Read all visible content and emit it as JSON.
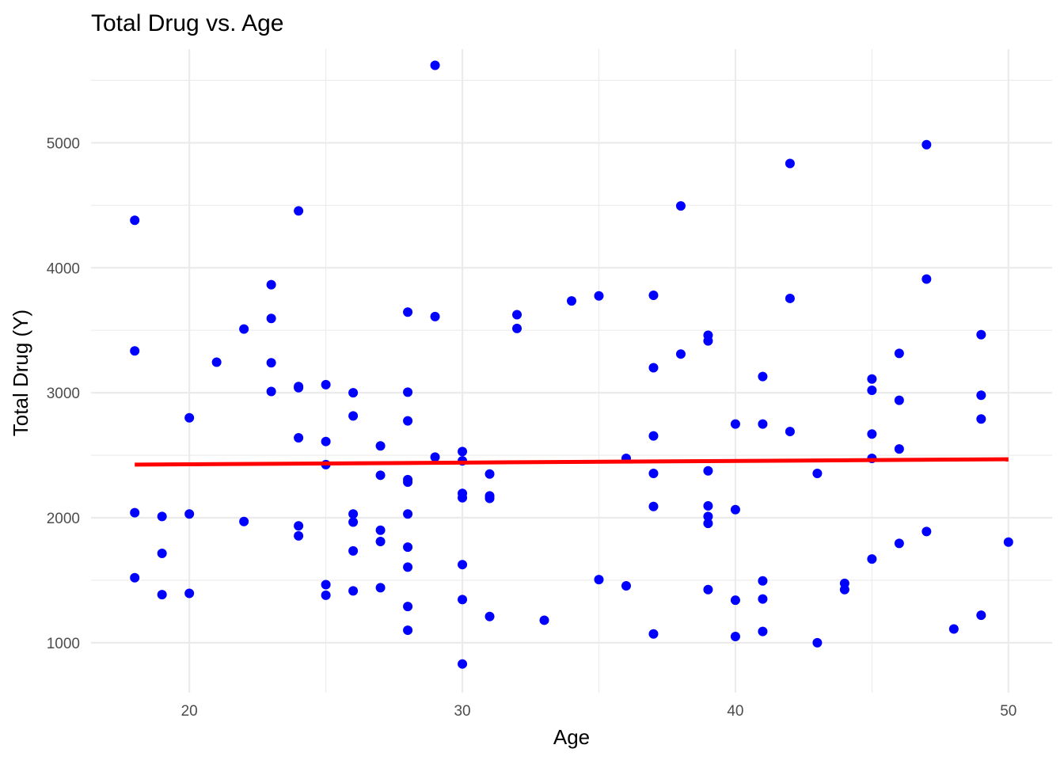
{
  "chart_data": {
    "type": "scatter",
    "title": "Total Drug vs. Age",
    "xlabel": "Age",
    "ylabel": "Total Drug (Y)",
    "xlim": [
      16.4,
      51.6
    ],
    "ylim": [
      600,
      5750
    ],
    "x_ticks": [
      20,
      30,
      40,
      50
    ],
    "y_ticks": [
      1000,
      2000,
      3000,
      4000,
      5000
    ],
    "grid": true,
    "point_color": "#0000ff",
    "line_color": "#ff0000",
    "trend_line": {
      "x": [
        18,
        50
      ],
      "y": [
        2425,
        2468
      ]
    },
    "points": [
      [
        18,
        4380
      ],
      [
        18,
        3335
      ],
      [
        18,
        2040
      ],
      [
        18,
        1520
      ],
      [
        19,
        2010
      ],
      [
        19,
        1715
      ],
      [
        19,
        1385
      ],
      [
        20,
        2800
      ],
      [
        20,
        2030
      ],
      [
        20,
        1395
      ],
      [
        21,
        3245
      ],
      [
        22,
        3510
      ],
      [
        22,
        1970
      ],
      [
        23,
        3865
      ],
      [
        23,
        3595
      ],
      [
        23,
        3240
      ],
      [
        23,
        3010
      ],
      [
        24,
        4455
      ],
      [
        24,
        3050
      ],
      [
        24,
        3040
      ],
      [
        24,
        2640
      ],
      [
        24,
        1935
      ],
      [
        24,
        1855
      ],
      [
        25,
        3065
      ],
      [
        25,
        2610
      ],
      [
        25,
        2425
      ],
      [
        25,
        1465
      ],
      [
        25,
        1380
      ],
      [
        26,
        3000
      ],
      [
        26,
        2815
      ],
      [
        26,
        2030
      ],
      [
        26,
        1965
      ],
      [
        26,
        1735
      ],
      [
        26,
        1415
      ],
      [
        27,
        2575
      ],
      [
        27,
        2340
      ],
      [
        27,
        1900
      ],
      [
        27,
        1810
      ],
      [
        27,
        1440
      ],
      [
        28,
        3645
      ],
      [
        28,
        3005
      ],
      [
        28,
        2775
      ],
      [
        28,
        2305
      ],
      [
        28,
        2285
      ],
      [
        28,
        2030
      ],
      [
        28,
        1765
      ],
      [
        28,
        1605
      ],
      [
        28,
        1290
      ],
      [
        28,
        1100
      ],
      [
        29,
        5620
      ],
      [
        29,
        3610
      ],
      [
        29,
        2485
      ],
      [
        30,
        2530
      ],
      [
        30,
        2455
      ],
      [
        30,
        2195
      ],
      [
        30,
        2160
      ],
      [
        30,
        1625
      ],
      [
        30,
        1345
      ],
      [
        30,
        830
      ],
      [
        31,
        2350
      ],
      [
        31,
        2175
      ],
      [
        31,
        2155
      ],
      [
        31,
        1210
      ],
      [
        32,
        3625
      ],
      [
        32,
        3515
      ],
      [
        33,
        1180
      ],
      [
        34,
        3735
      ],
      [
        35,
        3775
      ],
      [
        35,
        1505
      ],
      [
        36,
        2475
      ],
      [
        36,
        1455
      ],
      [
        37,
        3780
      ],
      [
        37,
        3200
      ],
      [
        37,
        2655
      ],
      [
        37,
        2355
      ],
      [
        37,
        2090
      ],
      [
        37,
        1070
      ],
      [
        38,
        4495
      ],
      [
        38,
        3310
      ],
      [
        39,
        3460
      ],
      [
        39,
        3415
      ],
      [
        39,
        2375
      ],
      [
        39,
        2095
      ],
      [
        39,
        2010
      ],
      [
        39,
        1955
      ],
      [
        39,
        1425
      ],
      [
        40,
        2750
      ],
      [
        40,
        2065
      ],
      [
        40,
        1340
      ],
      [
        40,
        1050
      ],
      [
        41,
        3130
      ],
      [
        41,
        2750
      ],
      [
        41,
        1495
      ],
      [
        41,
        1350
      ],
      [
        41,
        1090
      ],
      [
        42,
        4835
      ],
      [
        42,
        3755
      ],
      [
        42,
        2690
      ],
      [
        43,
        2355
      ],
      [
        43,
        1000
      ],
      [
        44,
        1475
      ],
      [
        44,
        1425
      ],
      [
        45,
        3110
      ],
      [
        45,
        3020
      ],
      [
        45,
        2670
      ],
      [
        45,
        2475
      ],
      [
        45,
        1670
      ],
      [
        46,
        3315
      ],
      [
        46,
        2940
      ],
      [
        46,
        2550
      ],
      [
        46,
        1795
      ],
      [
        47,
        4985
      ],
      [
        47,
        3910
      ],
      [
        47,
        1890
      ],
      [
        48,
        1110
      ],
      [
        49,
        3465
      ],
      [
        49,
        2980
      ],
      [
        49,
        2790
      ],
      [
        49,
        1220
      ],
      [
        50,
        1805
      ]
    ]
  }
}
